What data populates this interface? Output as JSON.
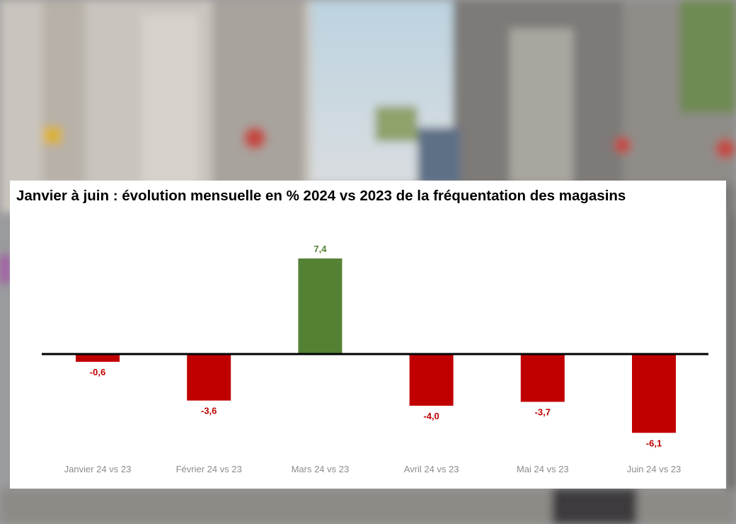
{
  "colors": {
    "negative": "#c00000",
    "positive": "#548235",
    "axis": "#000000",
    "category_text": "#8c8c8c"
  },
  "chart_data": {
    "type": "bar",
    "title": "Janvier à juin : évolution mensuelle en % 2024 vs 2023 de la fréquentation des magasins",
    "categories": [
      "Janvier 24 vs 23",
      "Février 24 vs 23",
      "Mars 24 vs 23",
      "Avril 24 vs 23",
      "Mai 24 vs 23",
      "Juin 24 vs 23"
    ],
    "values": [
      -0.6,
      -3.6,
      7.4,
      -4.0,
      -3.7,
      -6.1
    ],
    "data_labels": [
      "-0,6",
      "-3,6",
      "7,4",
      "-4,0",
      "-3,7",
      "-6,1"
    ],
    "xlabel": "",
    "ylabel": "",
    "ylim": [
      -6.5,
      7.5
    ],
    "grid": false,
    "legend": "none"
  }
}
